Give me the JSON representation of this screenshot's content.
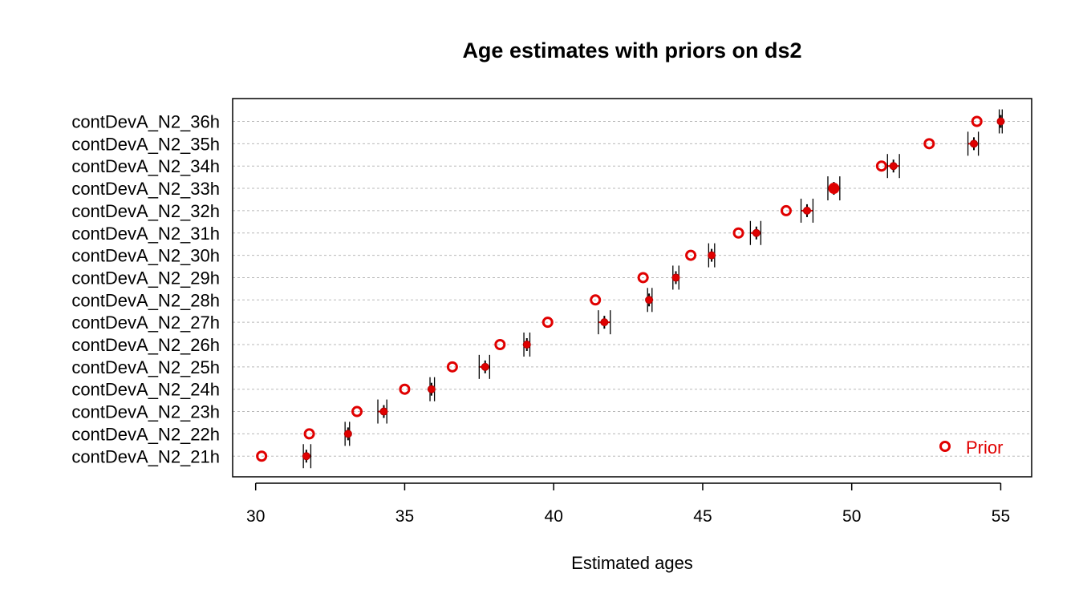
{
  "chart_data": {
    "type": "scatter",
    "title": "Age estimates with priors on ds2",
    "xlabel": "Estimated ages",
    "ylabel": "",
    "xlim": [
      29.5,
      56.0
    ],
    "x_ticks": [
      "30",
      "35",
      "40",
      "45",
      "50",
      "55"
    ],
    "grid": "horizontal dotted",
    "legend_position": "bottom-right",
    "categories": [
      "contDevA_N2_21h",
      "contDevA_N2_22h",
      "contDevA_N2_23h",
      "contDevA_N2_24h",
      "contDevA_N2_25h",
      "contDevA_N2_26h",
      "contDevA_N2_27h",
      "contDevA_N2_28h",
      "contDevA_N2_29h",
      "contDevA_N2_30h",
      "contDevA_N2_31h",
      "contDevA_N2_32h",
      "contDevA_N2_33h",
      "contDevA_N2_34h",
      "contDevA_N2_35h",
      "contDevA_N2_36h"
    ],
    "series": [
      {
        "name": "Prior",
        "marker": "open-circle",
        "color": "#e00000",
        "values": [
          30.2,
          31.8,
          33.4,
          35.0,
          36.6,
          38.2,
          39.8,
          41.4,
          43.0,
          44.6,
          46.2,
          47.8,
          49.4,
          51.0,
          52.6,
          54.2
        ]
      },
      {
        "name": "",
        "marker": "estimate",
        "color": "#000000",
        "values": [
          31.7,
          33.1,
          34.3,
          35.9,
          37.7,
          39.1,
          41.7,
          43.2,
          44.1,
          45.3,
          46.8,
          48.5,
          49.4,
          51.4,
          54.1,
          55.0
        ],
        "ci_low": [
          31.6,
          33.0,
          34.1,
          35.85,
          37.5,
          39.0,
          41.5,
          43.15,
          44.0,
          45.2,
          46.6,
          48.3,
          49.2,
          51.2,
          53.9,
          54.95
        ],
        "ci_high": [
          31.85,
          33.15,
          34.4,
          36.0,
          37.85,
          39.2,
          41.9,
          43.3,
          44.2,
          45.4,
          46.95,
          48.7,
          49.6,
          51.6,
          54.25,
          55.05
        ]
      }
    ]
  }
}
